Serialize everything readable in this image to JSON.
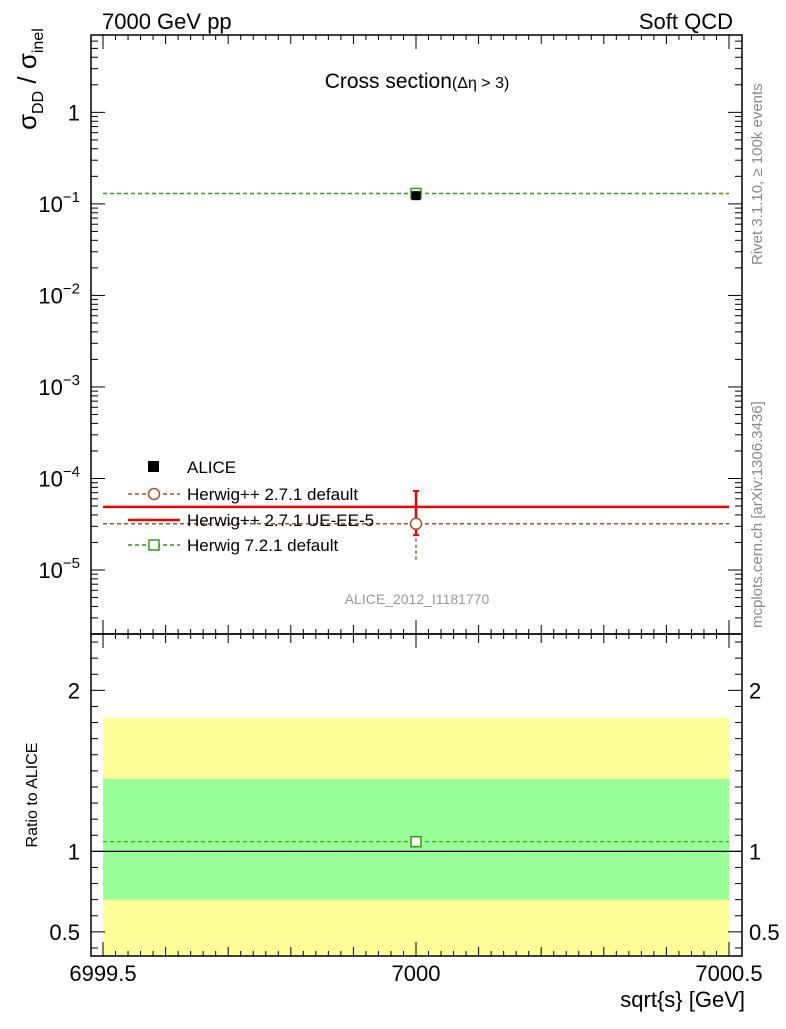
{
  "header": {
    "left": "7000 GeV pp",
    "right": "Soft QCD"
  },
  "side_notes": {
    "rivet": "Rivet 3.1.10, ≥ 100k events",
    "mcplots": "mcplots.cern.ch [arXiv:1306.3436]"
  },
  "chart_data": [
    {
      "type": "scatter",
      "title": "Cross section",
      "title_suffix": "(Δη > 3)",
      "ylabel": "σ_DD / σ_inel",
      "ylabel_main": "σ",
      "ylabel_sub1": "DD",
      "ylabel_sep": " / σ",
      "ylabel_sub2": "inel",
      "yscale": "log",
      "xlim": [
        6999.5,
        7000.5
      ],
      "ylim": [
        2e-06,
        7.0
      ],
      "y_tick_labels": [
        {
          "value": 1e-05,
          "base": "10",
          "exp": "−5"
        },
        {
          "value": 0.0001,
          "base": "10",
          "exp": "−4"
        },
        {
          "value": 0.001,
          "base": "10",
          "exp": "−3"
        },
        {
          "value": 0.01,
          "base": "10",
          "exp": "−2"
        },
        {
          "value": 0.1,
          "base": "10",
          "exp": "−1"
        },
        {
          "value": 1,
          "base": "1",
          "exp": ""
        }
      ],
      "legend_position": "bottom-left",
      "watermark": "ALICE_2012_I1181770",
      "series": [
        {
          "name": "ALICE",
          "style": "data",
          "color": "#000000",
          "x": [
            7000
          ],
          "y": [
            0.123
          ],
          "yerr_low": [
            0.004
          ],
          "yerr_high": [
            0.004
          ]
        },
        {
          "name": "Herwig++ 2.7.1 default",
          "style": "circle-dashed",
          "color": "#a0522d",
          "x": [
            7000
          ],
          "y": [
            3.2e-05
          ],
          "yerr_low": [
            1.9e-05
          ],
          "yerr_high": [
            1.9e-05
          ]
        },
        {
          "name": "Herwig++ 2.7.1 UE-EE-5",
          "style": "line-solid",
          "color": "#ee0000",
          "x": [
            7000
          ],
          "y": [
            4.9e-05
          ],
          "yerr_low": [
            2.5e-05
          ],
          "yerr_high": [
            2.4e-05
          ]
        },
        {
          "name": "Herwig 7.2.1 default",
          "style": "square-dashed",
          "color": "#339911",
          "x": [
            7000
          ],
          "y": [
            0.13
          ],
          "yerr_low": [
            0.002
          ],
          "yerr_high": [
            0.002
          ]
        }
      ]
    },
    {
      "type": "scatter",
      "ylabel": "Ratio to ALICE",
      "xlabel": "sqrt{s} [GeV]",
      "xlim": [
        6999.5,
        7000.5
      ],
      "x_tick_labels": [
        "6999.5",
        "7000",
        "7000.5"
      ],
      "ylim": [
        0.35,
        2.35
      ],
      "y_tick_labels": [
        "0.5",
        "1",
        "2"
      ],
      "bands": [
        {
          "name": "yellow-band",
          "color": "#ffff99",
          "low": 0.7,
          "high": 1.83
        },
        {
          "name": "green-band",
          "color": "#99ff99",
          "low": 0.7,
          "high": 1.45
        }
      ],
      "reference": 1.0,
      "series": [
        {
          "name": "Herwig 7.2.1 default",
          "color": "#339911",
          "x": [
            7000
          ],
          "y": [
            1.06
          ]
        }
      ]
    }
  ]
}
